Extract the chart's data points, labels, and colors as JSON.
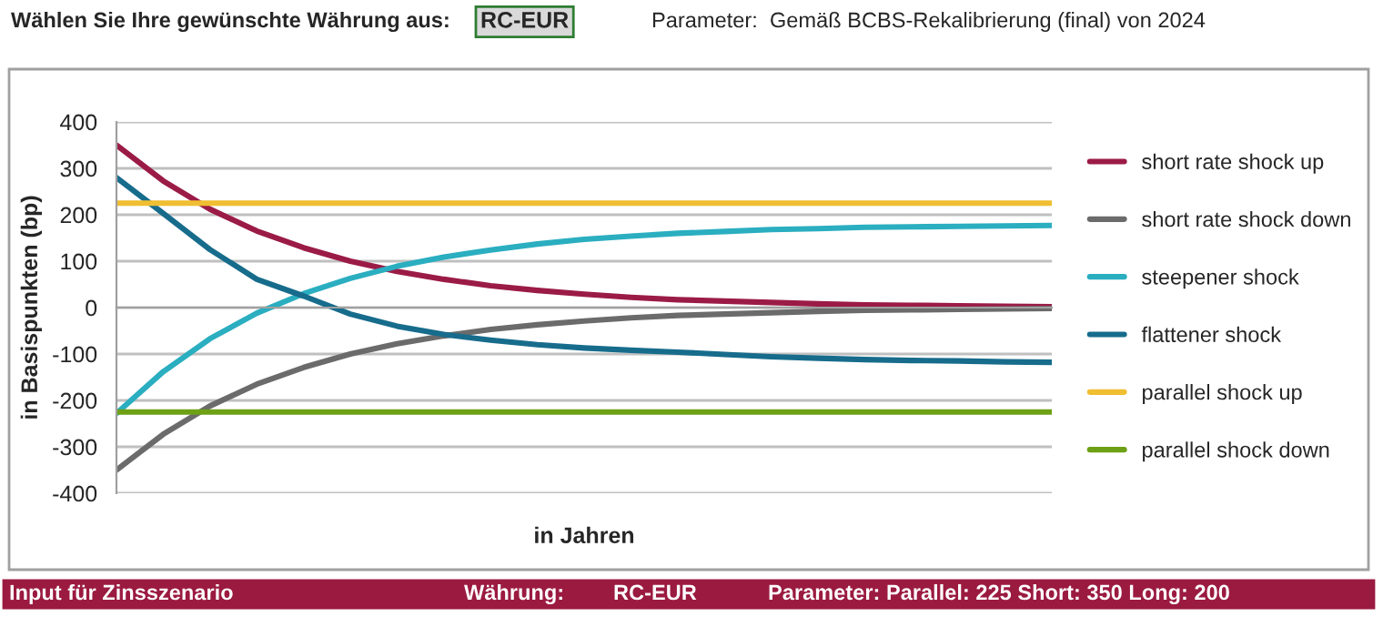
{
  "chart_data": {
    "type": "line",
    "xlabel": "in Jahren",
    "ylabel": "in Basispunkten (bp)",
    "annotations": [
      "Wählen Sie Ihre gewünschte Währung aus:",
      "RC-EUR",
      "Parameter:  Gemäß BCBS-Rekalibrierung (final) von 2024",
      "Input für Zinsszenario",
      "Währung:",
      "RC-EUR",
      "Parameter: Parallel: 225 Short: 350 Long: 200"
    ],
    "categories": [
      null,
      null,
      null,
      null,
      null,
      null,
      null,
      null,
      null,
      null,
      null,
      null,
      null,
      null,
      null,
      null,
      null,
      null,
      null,
      null,
      null
    ],
    "series": [
      {
        "name": "short rate shock up",
        "color": "#9b1b47",
        "values": [
          350,
          273,
          212,
          165,
          129,
          100,
          78,
          61,
          47,
          37,
          29,
          22,
          17,
          14,
          11,
          8,
          6,
          5,
          4,
          3,
          2
        ]
      },
      {
        "name": "short rate shock down",
        "color": "#6b6b6b",
        "values": [
          -350,
          -273,
          -212,
          -165,
          -129,
          -100,
          -78,
          -61,
          -47,
          -37,
          -29,
          -22,
          -17,
          -14,
          -11,
          -8,
          -6,
          -5,
          -4,
          -3,
          -2
        ]
      },
      {
        "name": "steepener shock",
        "color": "#2aaec0",
        "values": [
          -228,
          -138,
          -67,
          -12,
          30,
          63,
          89,
          109,
          124,
          137,
          147,
          154,
          160,
          164,
          168,
          170,
          173,
          174,
          175,
          176,
          177
        ]
      },
      {
        "name": "flattener shock",
        "color": "#176c8c",
        "values": [
          280,
          203,
          125,
          61,
          25,
          -14,
          -40,
          -58,
          -70,
          -80,
          -87,
          -92,
          -96,
          -101,
          -106,
          -109,
          -112,
          -114,
          -115,
          -117,
          -118
        ]
      },
      {
        "name": "parallel shock up",
        "color": "#f0be32",
        "values": [
          225,
          225,
          225,
          225,
          225,
          225,
          225,
          225,
          225,
          225,
          225,
          225,
          225,
          225,
          225,
          225,
          225,
          225,
          225,
          225,
          225
        ]
      },
      {
        "name": "parallel shock down",
        "color": "#6ea016",
        "values": [
          -225,
          -225,
          -225,
          -225,
          -225,
          -225,
          -225,
          -225,
          -225,
          -225,
          -225,
          -225,
          -225,
          -225,
          -225,
          -225,
          -225,
          -225,
          -225,
          -225,
          -225
        ]
      }
    ],
    "ylim": [
      -400,
      400
    ],
    "yticks": [
      -400,
      -300,
      -200,
      -100,
      0,
      100,
      200,
      300,
      400
    ],
    "grid": "y",
    "legend": "right",
    "tick_labels": "y",
    "marker": "none",
    "line_style": "solid"
  }
}
